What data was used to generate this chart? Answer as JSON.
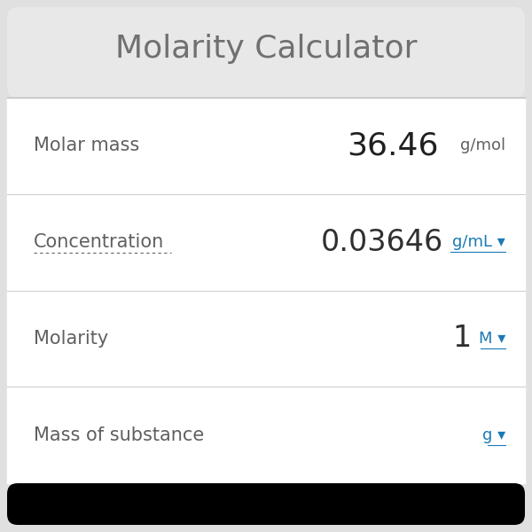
{
  "title": "Molarity Calculator",
  "title_color": "#707070",
  "title_bg": "#e8e8e8",
  "outer_bg": "#e0e0e0",
  "content_bg": "#ffffff",
  "bottom_bg": "#000000",
  "row_separator_color": "#d0d0d0",
  "rows": [
    {
      "label": "Molar mass",
      "label_color": "#606060",
      "value": "36.46",
      "value_color": "#202020",
      "unit": "g/mol",
      "unit_color": "#606060",
      "unit_is_link": false,
      "has_dotted_underline": false,
      "value_fontsize": 26,
      "unit_fontsize": 13
    },
    {
      "label": "Concentration",
      "label_color": "#606060",
      "value": "0.03646",
      "value_color": "#303030",
      "unit": "g/mL ▾",
      "unit_color": "#1a7ab5",
      "unit_is_link": true,
      "has_dotted_underline": true,
      "value_fontsize": 24,
      "unit_fontsize": 13
    },
    {
      "label": "Molarity",
      "label_color": "#606060",
      "value": "1",
      "value_color": "#303030",
      "unit": "M ▾",
      "unit_color": "#1a7ab5",
      "unit_is_link": true,
      "has_dotted_underline": false,
      "value_fontsize": 24,
      "unit_fontsize": 13
    },
    {
      "label": "Mass of substance",
      "label_color": "#606060",
      "value": "",
      "value_color": "#303030",
      "unit": "g ▾",
      "unit_color": "#1a7ab5",
      "unit_is_link": true,
      "has_dotted_underline": false,
      "value_fontsize": 24,
      "unit_fontsize": 13
    }
  ],
  "title_fontsize": 26,
  "label_fontsize": 15,
  "fig_width": 6.0,
  "fig_height": 6.0,
  "dpi": 100
}
